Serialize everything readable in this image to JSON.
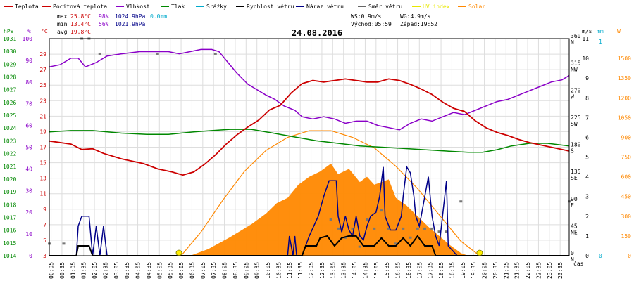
{
  "chart_data": {
    "type": "line",
    "title": "24.08.2016",
    "x_unit": "čas",
    "x_range_minutes": [
      0,
      1440
    ],
    "x_ticks": [
      "00:05",
      "00:35",
      "01:05",
      "01:35",
      "02:05",
      "02:35",
      "03:05",
      "03:35",
      "04:05",
      "04:35",
      "05:05",
      "05:35",
      "06:05",
      "06:35",
      "07:05",
      "07:35",
      "08:05",
      "08:35",
      "09:05",
      "09:35",
      "10:05",
      "10:35",
      "11:05",
      "11:35",
      "12:05",
      "12:35",
      "13:05",
      "13:35",
      "14:05",
      "14:35",
      "15:05",
      "15:35",
      "16:05",
      "16:35",
      "17:05",
      "17:35",
      "18:05",
      "18:35",
      "19:05",
      "19:35",
      "20:05",
      "20:35",
      "21:05",
      "21:35",
      "22:05",
      "22:35",
      "23:05",
      "23:35"
    ],
    "legend": [
      {
        "name": "Teplota",
        "color": "#cc0000"
      },
      {
        "name": "Pocitová teplota",
        "color": "#cc0000"
      },
      {
        "name": "Vlhkost",
        "color": "#8a00c8"
      },
      {
        "name": "Tlak",
        "color": "#008800"
      },
      {
        "name": "Srážky",
        "color": "#00aacc"
      },
      {
        "name": "Rychlost větru",
        "color": "#000000"
      },
      {
        "name": "Náraz větru",
        "color": "#000088"
      },
      {
        "name": "Směr větru",
        "color": "#666666"
      },
      {
        "name": "UV index",
        "color": "#e8e800"
      },
      {
        "name": "Solar",
        "color": "#ff8800"
      }
    ],
    "stats": {
      "max": {
        "label": "max",
        "temp": "25.8°C",
        "hum": "98%",
        "press": "1024.9hPa",
        "rain": "0.0mm"
      },
      "min": {
        "label": "min",
        "temp": "13.4°C",
        "hum": "56%",
        "press": "1021.9hPa"
      },
      "avg": {
        "label": "avg",
        "temp": "19.8°C"
      },
      "ws": "WS:0.9m/s",
      "wg": "WG:4.9m/s",
      "sunrise": "Východ:05:59",
      "sunset": "Západ:19:52"
    },
    "axes": {
      "hpa": {
        "label": "hPa",
        "range": [
          1014,
          1031
        ],
        "ticks": [
          "1014",
          "1015",
          "1016",
          "1017",
          "1018",
          "1019",
          "1020",
          "1021",
          "1022",
          "1023",
          "1024",
          "1025",
          "1026",
          "1027",
          "1028",
          "1029",
          "1030",
          "1031"
        ]
      },
      "pct": {
        "label": "%",
        "range": [
          0,
          100
        ],
        "ticks": [
          "0",
          "10",
          "20",
          "30",
          "40",
          "50",
          "60",
          "70",
          "80",
          "90",
          "100"
        ]
      },
      "temp": {
        "label": "°C",
        "range": [
          3,
          31
        ],
        "ticks": [
          "3",
          "5",
          "7",
          "9",
          "11",
          "13",
          "15",
          "17",
          "19",
          "21",
          "23",
          "25",
          "27",
          "29"
        ]
      },
      "dir": {
        "label": "",
        "range": [
          0,
          360
        ],
        "ticks": [
          {
            "v": 0,
            "deg": "0",
            "card": "N"
          },
          {
            "v": 45,
            "deg": "45",
            "card": "NE"
          },
          {
            "v": 90,
            "deg": "90",
            "card": "E"
          },
          {
            "v": 135,
            "deg": "135",
            "card": "SE"
          },
          {
            "v": 180,
            "deg": "180",
            "card": "S"
          },
          {
            "v": 225,
            "deg": "225",
            "card": "SW"
          },
          {
            "v": 270,
            "deg": "270",
            "card": "W"
          },
          {
            "v": 315,
            "deg": "315",
            "card": "NW"
          },
          {
            "v": 360,
            "deg": "360",
            "card": "N"
          }
        ]
      },
      "ms": {
        "label": "m/s",
        "range": [
          0,
          11
        ],
        "ticks": [
          "0",
          "1",
          "2",
          "3",
          "4",
          "5",
          "6",
          "7",
          "8",
          "9",
          "10",
          "11"
        ]
      },
      "mm": {
        "label": "mm",
        "range": [
          0,
          1
        ],
        "ticks": [
          "0",
          "1"
        ]
      },
      "w": {
        "label": "W",
        "range": [
          0,
          1650
        ],
        "ticks": [
          "0",
          "150",
          "300",
          "450",
          "600",
          "750",
          "900",
          "1050",
          "1200",
          "1350",
          "1500"
        ]
      }
    },
    "series": {
      "temperature": [
        [
          0,
          17.8
        ],
        [
          60,
          17.4
        ],
        [
          90,
          16.7
        ],
        [
          120,
          16.8
        ],
        [
          150,
          16.2
        ],
        [
          200,
          15.5
        ],
        [
          260,
          14.9
        ],
        [
          300,
          14.2
        ],
        [
          340,
          13.8
        ],
        [
          370,
          13.4
        ],
        [
          400,
          13.8
        ],
        [
          430,
          14.8
        ],
        [
          460,
          16.0
        ],
        [
          490,
          17.4
        ],
        [
          520,
          18.6
        ],
        [
          550,
          19.6
        ],
        [
          580,
          20.5
        ],
        [
          610,
          21.8
        ],
        [
          640,
          22.4
        ],
        [
          670,
          24.0
        ],
        [
          700,
          25.2
        ],
        [
          730,
          25.6
        ],
        [
          760,
          25.4
        ],
        [
          790,
          25.6
        ],
        [
          820,
          25.8
        ],
        [
          850,
          25.6
        ],
        [
          880,
          25.4
        ],
        [
          910,
          25.4
        ],
        [
          940,
          25.8
        ],
        [
          970,
          25.6
        ],
        [
          1000,
          25.1
        ],
        [
          1030,
          24.5
        ],
        [
          1060,
          23.8
        ],
        [
          1090,
          22.8
        ],
        [
          1120,
          22.0
        ],
        [
          1150,
          21.6
        ],
        [
          1180,
          20.4
        ],
        [
          1210,
          19.5
        ],
        [
          1240,
          18.9
        ],
        [
          1270,
          18.5
        ],
        [
          1300,
          18.0
        ],
        [
          1330,
          17.6
        ],
        [
          1360,
          17.3
        ],
        [
          1390,
          17.0
        ],
        [
          1420,
          16.7
        ],
        [
          1440,
          16.5
        ]
      ],
      "humidity": [
        [
          0,
          87
        ],
        [
          30,
          88
        ],
        [
          60,
          91
        ],
        [
          80,
          91
        ],
        [
          100,
          87
        ],
        [
          130,
          89
        ],
        [
          160,
          92
        ],
        [
          200,
          93
        ],
        [
          250,
          94
        ],
        [
          300,
          94
        ],
        [
          330,
          94
        ],
        [
          360,
          93
        ],
        [
          390,
          94
        ],
        [
          420,
          95
        ],
        [
          450,
          95
        ],
        [
          470,
          94
        ],
        [
          490,
          90
        ],
        [
          520,
          84
        ],
        [
          550,
          79
        ],
        [
          580,
          76
        ],
        [
          600,
          74
        ],
        [
          625,
          72
        ],
        [
          650,
          69
        ],
        [
          680,
          67
        ],
        [
          700,
          64
        ],
        [
          730,
          63
        ],
        [
          760,
          64
        ],
        [
          790,
          63
        ],
        [
          820,
          61
        ],
        [
          850,
          62
        ],
        [
          880,
          62
        ],
        [
          910,
          60
        ],
        [
          940,
          59
        ],
        [
          970,
          58
        ],
        [
          1000,
          61
        ],
        [
          1030,
          63
        ],
        [
          1060,
          62
        ],
        [
          1090,
          64
        ],
        [
          1120,
          66
        ],
        [
          1150,
          65
        ],
        [
          1180,
          67
        ],
        [
          1210,
          69
        ],
        [
          1240,
          71
        ],
        [
          1270,
          72
        ],
        [
          1300,
          74
        ],
        [
          1330,
          76
        ],
        [
          1360,
          78
        ],
        [
          1390,
          80
        ],
        [
          1420,
          81
        ],
        [
          1440,
          83
        ]
      ],
      "pressure": [
        [
          0,
          1023.7
        ],
        [
          60,
          1023.8
        ],
        [
          120,
          1023.8
        ],
        [
          200,
          1023.6
        ],
        [
          270,
          1023.5
        ],
        [
          330,
          1023.5
        ],
        [
          400,
          1023.7
        ],
        [
          450,
          1023.8
        ],
        [
          500,
          1023.9
        ],
        [
          560,
          1023.9
        ],
        [
          620,
          1023.6
        ],
        [
          680,
          1023.3
        ],
        [
          740,
          1023.0
        ],
        [
          800,
          1022.8
        ],
        [
          860,
          1022.6
        ],
        [
          920,
          1022.5
        ],
        [
          980,
          1022.4
        ],
        [
          1040,
          1022.3
        ],
        [
          1100,
          1022.2
        ],
        [
          1160,
          1022.1
        ],
        [
          1200,
          1022.1
        ],
        [
          1240,
          1022.3
        ],
        [
          1280,
          1022.6
        ],
        [
          1330,
          1022.8
        ],
        [
          1380,
          1022.8
        ],
        [
          1440,
          1022.6
        ]
      ],
      "wind_speed": [
        [
          0,
          0
        ],
        [
          75,
          0
        ],
        [
          80,
          0.5
        ],
        [
          90,
          0.5
        ],
        [
          110,
          0.5
        ],
        [
          120,
          0
        ],
        [
          700,
          0
        ],
        [
          710,
          0.5
        ],
        [
          740,
          0.5
        ],
        [
          750,
          0.9
        ],
        [
          770,
          1.0
        ],
        [
          790,
          0.5
        ],
        [
          810,
          0.9
        ],
        [
          830,
          1.0
        ],
        [
          850,
          1.0
        ],
        [
          870,
          0.5
        ],
        [
          900,
          0.5
        ],
        [
          920,
          0.9
        ],
        [
          940,
          0.5
        ],
        [
          960,
          0.5
        ],
        [
          980,
          0.9
        ],
        [
          1000,
          0.5
        ],
        [
          1020,
          1.0
        ],
        [
          1040,
          0.5
        ],
        [
          1060,
          0.5
        ],
        [
          1070,
          0
        ],
        [
          1440,
          0
        ]
      ],
      "wind_gust": [
        [
          0,
          0
        ],
        [
          75,
          0
        ],
        [
          80,
          1.5
        ],
        [
          90,
          2.0
        ],
        [
          110,
          2.0
        ],
        [
          120,
          0
        ],
        [
          130,
          1.5
        ],
        [
          140,
          0
        ],
        [
          150,
          1.5
        ],
        [
          160,
          0
        ],
        [
          660,
          0
        ],
        [
          665,
          1.0
        ],
        [
          675,
          0
        ],
        [
          680,
          1.0
        ],
        [
          685,
          0
        ],
        [
          700,
          0
        ],
        [
          720,
          1.0
        ],
        [
          745,
          2.0
        ],
        [
          760,
          3.0
        ],
        [
          775,
          3.8
        ],
        [
          795,
          3.8
        ],
        [
          800,
          2.0
        ],
        [
          810,
          1.2
        ],
        [
          820,
          2.0
        ],
        [
          830,
          1.3
        ],
        [
          840,
          1.0
        ],
        [
          850,
          2.0
        ],
        [
          860,
          1.0
        ],
        [
          870,
          0.8
        ],
        [
          880,
          1.5
        ],
        [
          890,
          2.0
        ],
        [
          905,
          2.2
        ],
        [
          915,
          3.0
        ],
        [
          925,
          4.5
        ],
        [
          930,
          2.0
        ],
        [
          945,
          1.3
        ],
        [
          960,
          1.3
        ],
        [
          975,
          2.0
        ],
        [
          980,
          3.0
        ],
        [
          990,
          4.5
        ],
        [
          1000,
          4.2
        ],
        [
          1010,
          3.0
        ],
        [
          1015,
          2.0
        ],
        [
          1025,
          1.5
        ],
        [
          1030,
          2.0
        ],
        [
          1040,
          3.0
        ],
        [
          1050,
          4.0
        ],
        [
          1060,
          2.0
        ],
        [
          1070,
          1.0
        ],
        [
          1080,
          0.5
        ],
        [
          1100,
          3.8
        ],
        [
          1105,
          0.5
        ],
        [
          1130,
          0
        ],
        [
          1440,
          0
        ]
      ],
      "wind_dir": [
        [
          0,
          20
        ],
        [
          40,
          20
        ],
        [
          90,
          360
        ],
        [
          110,
          360
        ],
        [
          140,
          335
        ],
        [
          300,
          335
        ],
        [
          460,
          335
        ],
        [
          780,
          60
        ],
        [
          800,
          45
        ],
        [
          820,
          30
        ],
        [
          840,
          45
        ],
        [
          860,
          15
        ],
        [
          880,
          60
        ],
        [
          900,
          45
        ],
        [
          920,
          75
        ],
        [
          940,
          45
        ],
        [
          960,
          20
        ],
        [
          980,
          45
        ],
        [
          1000,
          30
        ],
        [
          1020,
          45
        ],
        [
          1040,
          45
        ],
        [
          1060,
          45
        ],
        [
          1080,
          40
        ],
        [
          1100,
          40
        ],
        [
          1140,
          90
        ],
        [
          1440,
          90
        ]
      ],
      "solar": [
        [
          0,
          0
        ],
        [
          390,
          0
        ],
        [
          440,
          50
        ],
        [
          500,
          140
        ],
        [
          560,
          240
        ],
        [
          600,
          320
        ],
        [
          630,
          400
        ],
        [
          660,
          440
        ],
        [
          690,
          540
        ],
        [
          720,
          600
        ],
        [
          750,
          640
        ],
        [
          780,
          700
        ],
        [
          800,
          620
        ],
        [
          830,
          660
        ],
        [
          860,
          560
        ],
        [
          880,
          600
        ],
        [
          900,
          540
        ],
        [
          940,
          580
        ],
        [
          960,
          440
        ],
        [
          990,
          380
        ],
        [
          1020,
          300
        ],
        [
          1050,
          220
        ],
        [
          1080,
          150
        ],
        [
          1110,
          80
        ],
        [
          1140,
          20
        ],
        [
          1160,
          0
        ],
        [
          1440,
          0
        ]
      ],
      "solar_theoretical": [
        [
          365,
          0
        ],
        [
          420,
          180
        ],
        [
          480,
          420
        ],
        [
          540,
          640
        ],
        [
          600,
          800
        ],
        [
          660,
          900
        ],
        [
          720,
          950
        ],
        [
          780,
          950
        ],
        [
          840,
          900
        ],
        [
          900,
          820
        ],
        [
          960,
          680
        ],
        [
          1020,
          510
        ],
        [
          1080,
          310
        ],
        [
          1140,
          110
        ],
        [
          1192,
          0
        ]
      ],
      "uv_markers": [
        [
          359,
          0
        ],
        [
          1192,
          0
        ]
      ]
    }
  }
}
